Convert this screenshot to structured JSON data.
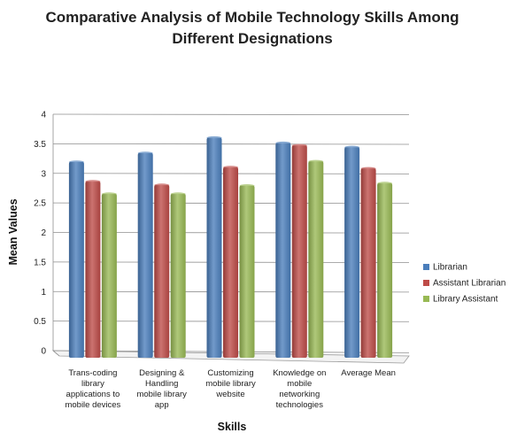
{
  "chart_data": {
    "type": "bar",
    "title_lines": [
      "Comparative Analysis of Mobile Technology Skills Among",
      "Different Designations"
    ],
    "xlabel": "Skills",
    "ylabel": "Mean Values",
    "ylim": [
      0,
      4
    ],
    "yticks": [
      "0",
      "0.5",
      "1",
      "1.5",
      "2",
      "2.5",
      "3",
      "3.5",
      "4"
    ],
    "grid": true,
    "legend_position": "right",
    "categories": [
      [
        "Trans-coding",
        "library",
        "applications to",
        "mobile devices"
      ],
      [
        "Designing &",
        "Handling",
        "mobile library",
        "app"
      ],
      [
        "Customizing",
        "mobile library",
        "website"
      ],
      [
        "Knowledge on",
        "mobile",
        "networking",
        "technologies"
      ],
      [
        "Average Mean"
      ]
    ],
    "series": [
      {
        "name": "Librarian",
        "color": "#4a7ebb",
        "values": [
          3.31,
          3.46,
          3.72,
          3.63,
          3.56
        ]
      },
      {
        "name": "Assistant Librarian",
        "color": "#be4b48",
        "values": [
          2.98,
          2.92,
          3.22,
          3.59,
          3.2
        ]
      },
      {
        "name": "Library Assistant",
        "color": "#98b954",
        "values": [
          2.77,
          2.77,
          2.91,
          3.32,
          2.95
        ]
      }
    ]
  }
}
